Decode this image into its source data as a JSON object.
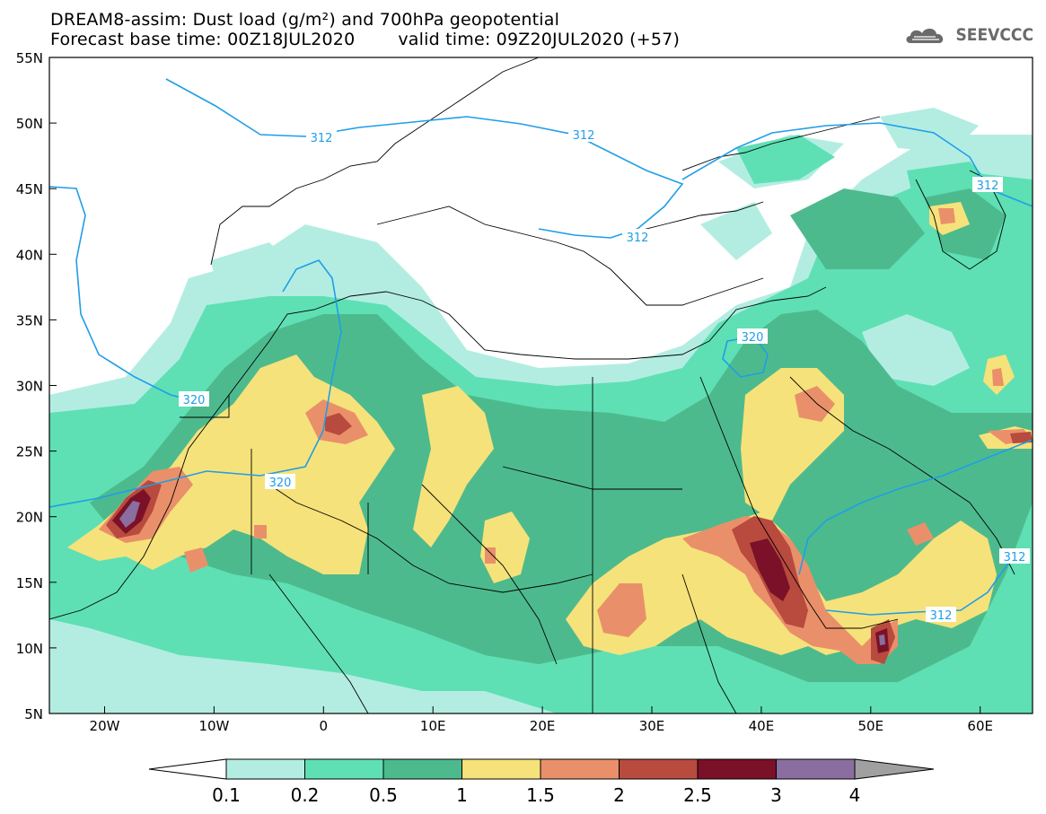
{
  "header": {
    "title_line1": "DREAM8-assim: Dust load (g/m²) and 700hPa geopotential",
    "base_time": "Forecast base time: 00Z18JUL2020",
    "valid_time": "valid time: 09Z20JUL2020 (+57)",
    "logo_text": "SEEVCCC"
  },
  "map": {
    "lat_labels": [
      "55N",
      "50N",
      "45N",
      "40N",
      "35N",
      "30N",
      "25N",
      "20N",
      "15N",
      "10N",
      "5N"
    ],
    "lon_labels": [
      "20W",
      "10W",
      "0",
      "10E",
      "20E",
      "30E",
      "40E",
      "50E",
      "60E"
    ],
    "contour_labels": [
      "312",
      "312",
      "312",
      "312",
      "312",
      "312",
      "320",
      "320",
      "320"
    ],
    "contour_color": "#1f9ee8"
  },
  "legend": {
    "levels": [
      "0.1",
      "0.2",
      "0.5",
      "1",
      "1.5",
      "2",
      "2.5",
      "3",
      "4"
    ],
    "colors": [
      "#b3ede2",
      "#5ee0b4",
      "#4dba8d",
      "#f6e27a",
      "#e9906a",
      "#b84a3e",
      "#7a1128",
      "#8a6ea0",
      "#a0a0a0"
    ],
    "under_color": "#ffffff"
  }
}
